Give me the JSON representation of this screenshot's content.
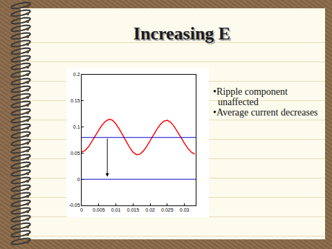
{
  "title": "Increasing E",
  "bullets": [
    "•Ripple component unaffected",
    "•Average current decreases"
  ],
  "chart_data": {
    "type": "line",
    "x": [
      0,
      0.001,
      0.002,
      0.003,
      0.004,
      0.005,
      0.006,
      0.007,
      0.008,
      0.009,
      0.01,
      0.011,
      0.012,
      0.013,
      0.014,
      0.015,
      0.016,
      0.017,
      0.018,
      0.019,
      0.02,
      0.021,
      0.022,
      0.023,
      0.024,
      0.025,
      0.026,
      0.027,
      0.028,
      0.029,
      0.03,
      0.031,
      0.032,
      0.033
    ],
    "values": [
      0.052,
      0.055,
      0.062,
      0.072,
      0.083,
      0.094,
      0.104,
      0.111,
      0.115,
      0.113,
      0.106,
      0.096,
      0.084,
      0.072,
      0.061,
      0.052,
      0.047,
      0.048,
      0.054,
      0.063,
      0.074,
      0.085,
      0.096,
      0.105,
      0.111,
      0.113,
      0.109,
      0.101,
      0.091,
      0.08,
      0.069,
      0.059,
      0.052,
      0.048
    ],
    "color": "#ff0000",
    "xlim": [
      0,
      0.0333
    ],
    "xticks": [
      0,
      0.005,
      0.01,
      0.015,
      0.02,
      0.025,
      0.03
    ],
    "ylim": [
      -0.05,
      0.2
    ],
    "yticks": [
      -0.05,
      0,
      0.05,
      0.1,
      0.15,
      0.2
    ],
    "grid": false,
    "hlines": [
      {
        "y": 0.08,
        "color": "#0000cc"
      },
      {
        "y": 0,
        "color": "#0000cc"
      }
    ],
    "arrow": {
      "x": 0.0075,
      "from": 0.08,
      "to": 0.005
    }
  }
}
